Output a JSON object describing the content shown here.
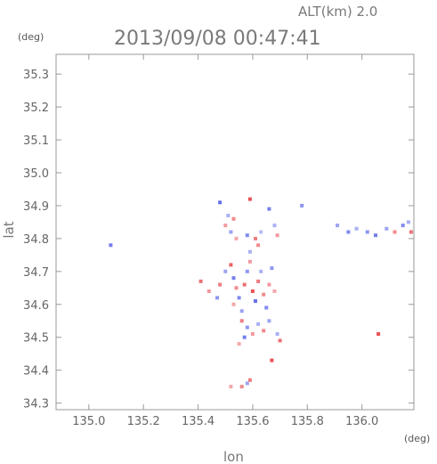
{
  "chart_data": {
    "type": "scatter",
    "title": "2013/09/08 00:47:41",
    "subtitle": "ALT(km) 2.0",
    "xlabel": "lon",
    "ylabel": "lat",
    "xunit": "(deg)",
    "yunit": "(deg)",
    "xlim": [
      134.88,
      136.19
    ],
    "ylim": [
      34.28,
      35.36
    ],
    "xticks": [
      135.0,
      135.2,
      135.4,
      135.6,
      135.8,
      136.0
    ],
    "xtick_labels": [
      "135.0",
      "135.2",
      "135.4",
      "135.6",
      "135.8",
      "136.0"
    ],
    "yticks": [
      34.3,
      34.4,
      34.5,
      34.6,
      34.7,
      34.8,
      34.9,
      35.0,
      35.1,
      35.2,
      35.3
    ],
    "ytick_labels": [
      "34.3",
      "34.4",
      "34.5",
      "34.6",
      "34.7",
      "34.8",
      "34.9",
      "35.0",
      "35.1",
      "35.2",
      "35.3"
    ],
    "grid": false,
    "colors": {
      "positive": "#e8454a",
      "negative": "#4a58e8",
      "frame": "#999999",
      "text": "#777777"
    },
    "points": [
      {
        "lon": 135.48,
        "lat": 34.91,
        "v": -0.8
      },
      {
        "lon": 135.59,
        "lat": 34.92,
        "v": 0.9
      },
      {
        "lon": 135.51,
        "lat": 34.87,
        "v": -0.3
      },
      {
        "lon": 135.53,
        "lat": 34.86,
        "v": 0.5
      },
      {
        "lon": 135.5,
        "lat": 34.84,
        "v": 0.4
      },
      {
        "lon": 135.52,
        "lat": 34.82,
        "v": -0.4
      },
      {
        "lon": 135.54,
        "lat": 34.8,
        "v": 0.3
      },
      {
        "lon": 135.58,
        "lat": 34.81,
        "v": -0.6
      },
      {
        "lon": 135.61,
        "lat": 34.8,
        "v": 0.6
      },
      {
        "lon": 135.63,
        "lat": 34.82,
        "v": -0.2
      },
      {
        "lon": 135.62,
        "lat": 34.78,
        "v": 0.5
      },
      {
        "lon": 135.66,
        "lat": 34.89,
        "v": -0.7
      },
      {
        "lon": 135.68,
        "lat": 34.84,
        "v": -0.3
      },
      {
        "lon": 135.69,
        "lat": 34.81,
        "v": 0.4
      },
      {
        "lon": 135.78,
        "lat": 34.9,
        "v": -0.5
      },
      {
        "lon": 135.59,
        "lat": 34.76,
        "v": -0.3
      },
      {
        "lon": 135.08,
        "lat": 34.78,
        "v": -0.7
      },
      {
        "lon": 135.41,
        "lat": 34.67,
        "v": 0.7
      },
      {
        "lon": 135.44,
        "lat": 34.64,
        "v": 0.4
      },
      {
        "lon": 135.47,
        "lat": 34.62,
        "v": -0.5
      },
      {
        "lon": 135.48,
        "lat": 34.66,
        "v": 0.6
      },
      {
        "lon": 135.5,
        "lat": 34.7,
        "v": -0.4
      },
      {
        "lon": 135.52,
        "lat": 34.72,
        "v": 0.8
      },
      {
        "lon": 135.53,
        "lat": 34.68,
        "v": -0.7
      },
      {
        "lon": 135.54,
        "lat": 34.65,
        "v": 0.5
      },
      {
        "lon": 135.55,
        "lat": 34.62,
        "v": -0.6
      },
      {
        "lon": 135.53,
        "lat": 34.6,
        "v": 0.3
      },
      {
        "lon": 135.56,
        "lat": 34.58,
        "v": -0.4
      },
      {
        "lon": 135.57,
        "lat": 34.66,
        "v": 0.7
      },
      {
        "lon": 135.58,
        "lat": 34.7,
        "v": -0.5
      },
      {
        "lon": 135.59,
        "lat": 34.73,
        "v": 0.4
      },
      {
        "lon": 135.6,
        "lat": 34.64,
        "v": 0.9
      },
      {
        "lon": 135.61,
        "lat": 34.61,
        "v": -0.8
      },
      {
        "lon": 135.62,
        "lat": 34.67,
        "v": 0.6
      },
      {
        "lon": 135.63,
        "lat": 34.7,
        "v": -0.3
      },
      {
        "lon": 135.64,
        "lat": 34.63,
        "v": 0.5
      },
      {
        "lon": 135.65,
        "lat": 34.59,
        "v": -0.6
      },
      {
        "lon": 135.66,
        "lat": 34.66,
        "v": 0.4
      },
      {
        "lon": 135.67,
        "lat": 34.71,
        "v": -0.5
      },
      {
        "lon": 135.68,
        "lat": 34.64,
        "v": 0.3
      },
      {
        "lon": 135.56,
        "lat": 34.55,
        "v": 0.6
      },
      {
        "lon": 135.58,
        "lat": 34.53,
        "v": -0.5
      },
      {
        "lon": 135.6,
        "lat": 34.51,
        "v": 0.4
      },
      {
        "lon": 135.57,
        "lat": 34.5,
        "v": -0.7
      },
      {
        "lon": 135.62,
        "lat": 34.54,
        "v": -0.3
      },
      {
        "lon": 135.64,
        "lat": 34.52,
        "v": 0.5
      },
      {
        "lon": 135.66,
        "lat": 34.55,
        "v": -0.4
      },
      {
        "lon": 135.55,
        "lat": 34.48,
        "v": 0.3
      },
      {
        "lon": 135.7,
        "lat": 34.49,
        "v": 0.7
      },
      {
        "lon": 135.69,
        "lat": 34.51,
        "v": -0.3
      },
      {
        "lon": 135.67,
        "lat": 34.43,
        "v": 0.9
      },
      {
        "lon": 135.52,
        "lat": 34.35,
        "v": 0.3
      },
      {
        "lon": 135.56,
        "lat": 34.35,
        "v": 0.5
      },
      {
        "lon": 135.58,
        "lat": 34.36,
        "v": -0.4
      },
      {
        "lon": 135.59,
        "lat": 34.37,
        "v": 0.6
      },
      {
        "lon": 136.06,
        "lat": 34.51,
        "v": 0.9
      },
      {
        "lon": 135.91,
        "lat": 34.84,
        "v": -0.4
      },
      {
        "lon": 135.95,
        "lat": 34.82,
        "v": -0.6
      },
      {
        "lon": 135.98,
        "lat": 34.83,
        "v": -0.3
      },
      {
        "lon": 136.02,
        "lat": 34.82,
        "v": -0.5
      },
      {
        "lon": 136.05,
        "lat": 34.81,
        "v": -0.7
      },
      {
        "lon": 136.09,
        "lat": 34.83,
        "v": -0.4
      },
      {
        "lon": 136.12,
        "lat": 34.82,
        "v": 0.5
      },
      {
        "lon": 136.15,
        "lat": 34.84,
        "v": -0.6
      },
      {
        "lon": 136.18,
        "lat": 34.82,
        "v": 0.7
      },
      {
        "lon": 136.17,
        "lat": 34.85,
        "v": -0.3
      }
    ]
  }
}
